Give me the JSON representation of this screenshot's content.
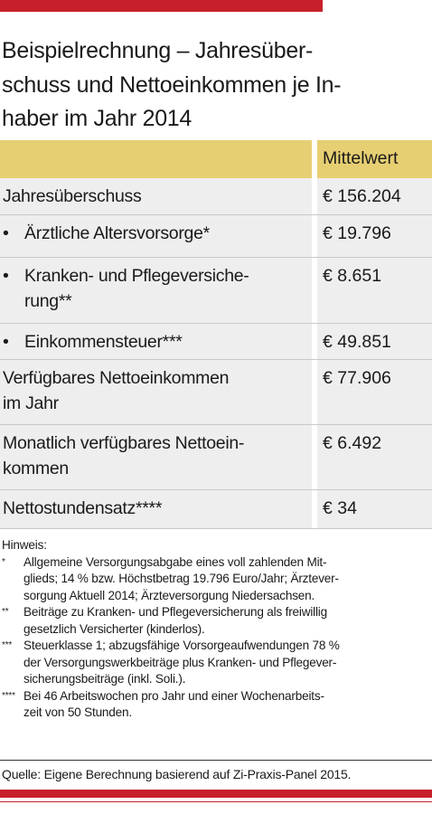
{
  "title": [
    "Beispielrechnung – Jahresüber-",
    "schuss und Nettoeinkommen je In-",
    "haber im Jahr 2014"
  ],
  "table": {
    "header": "Mittelwert",
    "rows": [
      {
        "label": [
          "Jahresüberschuss"
        ],
        "value": "€ 156.204"
      },
      {
        "bullet": "•",
        "label": [
          "Ärztliche Altersvorsorge*"
        ],
        "value": "€ 19.796"
      },
      {
        "bullet": "•",
        "label": [
          "Kranken- und Pflegeversiche-",
          "rung**"
        ],
        "value": "€ 8.651"
      },
      {
        "bullet": "•",
        "label": [
          "Einkommensteuer***"
        ],
        "value": "€ 49.851"
      },
      {
        "label": [
          "Verfügbares Nettoeinkommen",
          "im Jahr"
        ],
        "value": "€ 77.906"
      },
      {
        "label": [
          "Monatlich verfügbares Nettoein-",
          "kommen"
        ],
        "value": "€ 6.492"
      },
      {
        "label": [
          "Nettostundensatz****"
        ],
        "value": "€ 34"
      }
    ]
  },
  "notes": {
    "heading": "Hinweis:",
    "items": [
      {
        "marker": "*",
        "lines": [
          "Allgemeine Versorgungsabgabe eines voll zahlenden Mit-",
          "glieds; 14 % bzw. Höchstbetrag 19.796 Euro/Jahr; Ärztever-",
          "sorgung Aktuell 2014; Ärzteversorgung Niedersachsen."
        ]
      },
      {
        "marker": "**",
        "lines": [
          "Beiträge zu Kranken- und Pflegeversicherung als freiwillig",
          "gesetzlich Versicherter (kinderlos)."
        ]
      },
      {
        "marker": "***",
        "lines": [
          "Steuerklasse 1; abzugsfähige Vorsorgeaufwendungen 78 %",
          "der Versorgungswerkbeiträge plus Kranken- und Pflegever-",
          "sicherungsbeiträge (inkl. Soli.)."
        ]
      },
      {
        "marker": "****",
        "lines": [
          "Bei 46 Arbeitswochen pro Jahr und einer Wochenarbeits-",
          "zeit von 50 Stunden."
        ]
      }
    ]
  },
  "source": "Quelle: Eigene Berechnung basierend auf Zi-Praxis-Panel 2015."
}
